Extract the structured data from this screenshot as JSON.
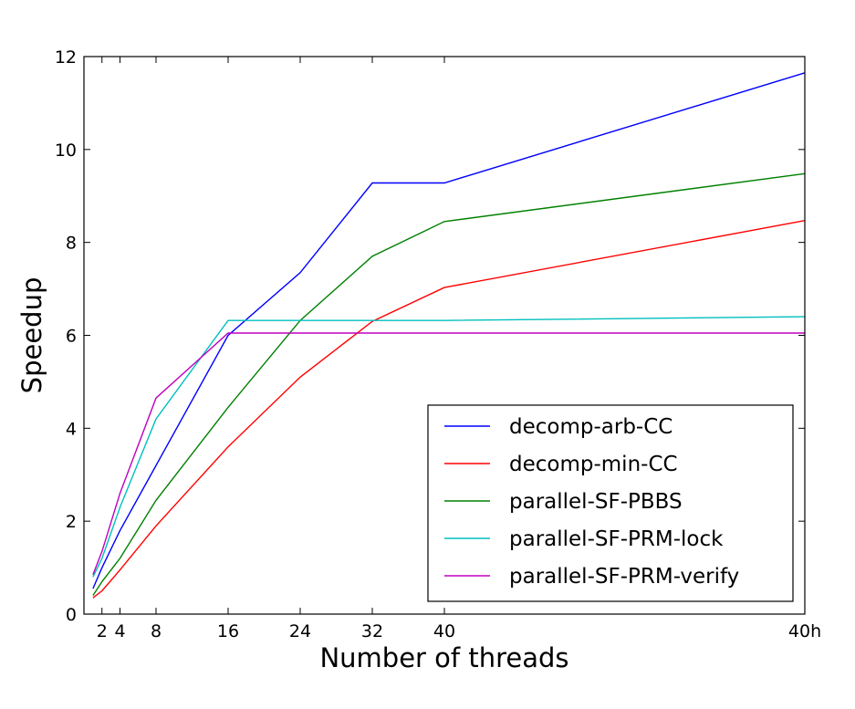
{
  "chart_data": {
    "type": "line",
    "title": "",
    "xlabel": "Number of threads",
    "ylabel": "Speedup",
    "x_positions": [
      1,
      2,
      4,
      8,
      16,
      24,
      32,
      40,
      80
    ],
    "x_tick_values": [
      2,
      4,
      8,
      16,
      24,
      32,
      40,
      80
    ],
    "x_tick_labels": [
      "2",
      "4",
      "8",
      "16",
      "24",
      "32",
      "40",
      "40h"
    ],
    "y_ticks": [
      0,
      2,
      4,
      6,
      8,
      10,
      12
    ],
    "y_tick_labels": [
      "0",
      "2",
      "4",
      "6",
      "8",
      "10",
      "12"
    ],
    "xlim": [
      0,
      80
    ],
    "ylim": [
      0,
      12
    ],
    "grid": false,
    "legend_position": "lower-right",
    "series": [
      {
        "name": "decomp-arb-CC",
        "color": "#0000ff",
        "values": [
          0.55,
          1.0,
          1.8,
          3.2,
          6.0,
          7.35,
          9.28,
          9.28,
          11.65
        ]
      },
      {
        "name": "decomp-min-CC",
        "color": "#ff0000",
        "values": [
          0.35,
          0.5,
          0.95,
          1.9,
          3.6,
          5.1,
          6.3,
          7.03,
          8.47
        ]
      },
      {
        "name": "parallel-SF-PBBS",
        "color": "#008000",
        "values": [
          0.4,
          0.7,
          1.2,
          2.45,
          4.45,
          6.32,
          7.7,
          8.45,
          9.48
        ]
      },
      {
        "name": "parallel-SF-PRM-lock",
        "color": "#00bfbf",
        "values": [
          0.8,
          1.2,
          2.3,
          4.2,
          6.32,
          6.32,
          6.32,
          6.32,
          6.4
        ]
      },
      {
        "name": "parallel-SF-PRM-verify",
        "color": "#bf00bf",
        "values": [
          0.85,
          1.35,
          2.6,
          4.65,
          6.05,
          6.05,
          6.05,
          6.05,
          6.05
        ]
      }
    ]
  }
}
